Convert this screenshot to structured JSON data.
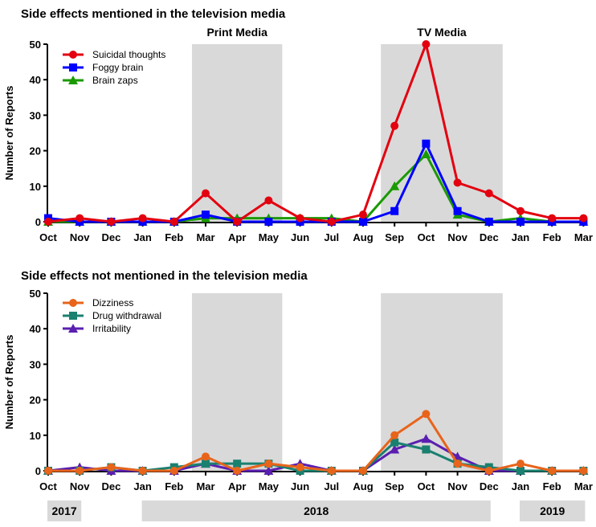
{
  "chart_data": [
    {
      "type": "line",
      "title": "Side effects mentioned in the television media",
      "ylabel": "Number of Reports",
      "xlabel": "",
      "ylim": [
        0,
        50
      ],
      "yticks": [
        0,
        10,
        20,
        30,
        40,
        50
      ],
      "categories": [
        "Oct",
        "Nov",
        "Dec",
        "Jan",
        "Feb",
        "Mar",
        "Apr",
        "May",
        "Jun",
        "Jul",
        "Aug",
        "Sep",
        "Oct",
        "Nov",
        "Dec",
        "Jan",
        "Feb",
        "Mar"
      ],
      "shaded_periods": [
        {
          "label": "Print Media",
          "from": "Mar",
          "to": "May"
        },
        {
          "label": "TV Media",
          "from": "Sep",
          "to": "Dec"
        }
      ],
      "legend_position": "top-left",
      "series": [
        {
          "name": "Suicidal thoughts",
          "color": "#e3000f",
          "marker": "circle",
          "values": [
            0,
            1,
            0,
            1,
            0,
            8,
            0,
            6,
            1,
            0,
            2,
            27,
            50,
            11,
            8,
            3,
            1,
            1
          ]
        },
        {
          "name": "Foggy brain",
          "color": "#0000ff",
          "marker": "square",
          "values": [
            1,
            0,
            0,
            0,
            0,
            2,
            0,
            0,
            0,
            0,
            0,
            3,
            22,
            3,
            0,
            0,
            0,
            0
          ]
        },
        {
          "name": "Brain zaps",
          "color": "#1a9a00",
          "marker": "triangle",
          "values": [
            0,
            0,
            0,
            0,
            0,
            1,
            1,
            1,
            1,
            1,
            0,
            10,
            19,
            2,
            0,
            1,
            0,
            0
          ]
        }
      ]
    },
    {
      "type": "line",
      "title": "Side effects not mentioned in the television media",
      "ylabel": "Number of Reports",
      "xlabel": "",
      "ylim": [
        0,
        50
      ],
      "yticks": [
        0,
        10,
        20,
        30,
        40,
        50
      ],
      "categories": [
        "Oct",
        "Nov",
        "Dec",
        "Jan",
        "Feb",
        "Mar",
        "Apr",
        "May",
        "Jun",
        "Jul",
        "Aug",
        "Sep",
        "Oct",
        "Nov",
        "Dec",
        "Jan",
        "Feb",
        "Mar"
      ],
      "shaded_periods": [
        {
          "label": "",
          "from": "Mar",
          "to": "May"
        },
        {
          "label": "",
          "from": "Sep",
          "to": "Dec"
        }
      ],
      "legend_position": "top-left",
      "series": [
        {
          "name": "Dizziness",
          "color": "#e8641b",
          "marker": "circle",
          "values": [
            0,
            0,
            1,
            0,
            0,
            4,
            0,
            2,
            1,
            0,
            0,
            10,
            16,
            2,
            0,
            2,
            0,
            0
          ]
        },
        {
          "name": "Drug withdrawal",
          "color": "#1a8070",
          "marker": "square",
          "values": [
            0,
            0,
            1,
            0,
            1,
            2,
            2,
            2,
            0,
            0,
            0,
            8,
            6,
            2,
            1,
            0,
            0,
            0
          ]
        },
        {
          "name": "Irritability",
          "color": "#5a1fb0",
          "marker": "triangle",
          "values": [
            0,
            1,
            0,
            0,
            0,
            2,
            0,
            0,
            2,
            0,
            0,
            6,
            9,
            4,
            0,
            0,
            0,
            0
          ]
        }
      ]
    }
  ],
  "years": [
    {
      "label": "2017",
      "from": 0,
      "to": 1
    },
    {
      "label": "2018",
      "from": 3,
      "to": 14
    },
    {
      "label": "2019",
      "from": 15,
      "to": 17
    }
  ]
}
